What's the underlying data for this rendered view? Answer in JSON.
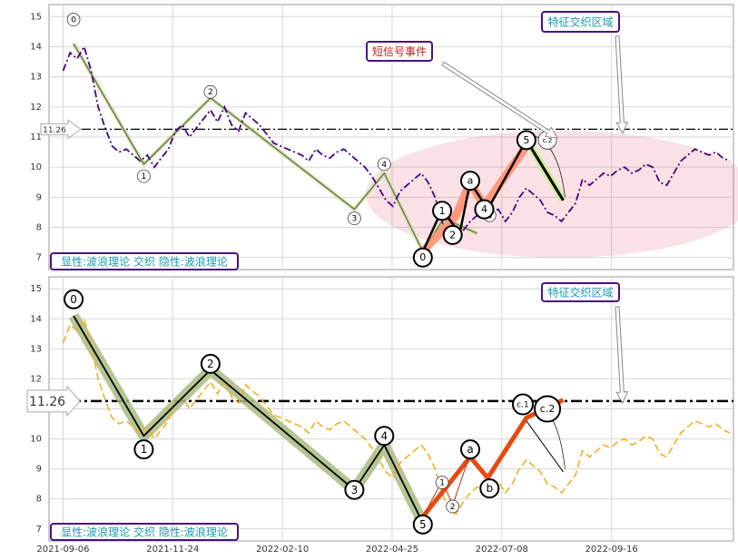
{
  "chart_data": [
    {
      "type": "line",
      "panel": "top",
      "ylim": [
        6.6,
        15.4
      ],
      "yticks": [
        7,
        8,
        9,
        10,
        11,
        12,
        13,
        14,
        15
      ],
      "grid": true,
      "series": [
        {
          "color": "#4b0082",
          "dash": "dashdot",
          "role": "price",
          "x": [
            0,
            4,
            8,
            12,
            16,
            20,
            24,
            28,
            32,
            36,
            40,
            44,
            48,
            52,
            56,
            60,
            64,
            68,
            72,
            76,
            80,
            84,
            88,
            92,
            96,
            100,
            104,
            108,
            112,
            116,
            120,
            124,
            128,
            132,
            136,
            140,
            144,
            148,
            152,
            156,
            160,
            164,
            168,
            172,
            176,
            180,
            184,
            188,
            192,
            196,
            200,
            204,
            208,
            212,
            216,
            220,
            224,
            228,
            232,
            236,
            240,
            244,
            248,
            252,
            256,
            260,
            264,
            268,
            272,
            276,
            280,
            284,
            288,
            292,
            296,
            300,
            304,
            308,
            312,
            316,
            320,
            324,
            328,
            332,
            336,
            340,
            344,
            348,
            352,
            356,
            360,
            364,
            368,
            372,
            376,
            380
          ],
          "y": [
            13.2,
            13.8,
            13.6,
            14.0,
            13.2,
            12.0,
            11.3,
            10.7,
            10.5,
            10.6,
            10.4,
            10.2,
            10.4,
            10.0,
            10.3,
            10.6,
            11.2,
            11.4,
            11.0,
            11.3,
            11.6,
            11.9,
            11.5,
            12.0,
            11.4,
            11.2,
            11.8,
            11.6,
            11.4,
            11.1,
            10.8,
            10.7,
            10.6,
            10.5,
            10.4,
            10.2,
            10.6,
            10.4,
            10.3,
            10.5,
            10.6,
            10.4,
            10.2,
            10.0,
            9.7,
            9.3,
            8.9,
            8.7,
            9.2,
            9.4,
            9.6,
            9.8,
            9.5,
            9.0,
            8.2,
            7.6,
            7.5,
            7.9,
            8.2,
            8.4,
            8.3,
            8.5,
            8.6,
            8.2,
            8.5,
            9.0,
            9.3,
            9.1,
            8.9,
            8.5,
            8.4,
            8.2,
            8.5,
            8.8,
            9.6,
            9.4,
            9.6,
            9.8,
            9.7,
            9.9,
            10.0,
            9.8,
            9.9,
            10.1,
            10.0,
            9.5,
            9.4,
            9.8,
            10.2,
            10.4,
            10.6,
            10.5,
            10.4,
            10.5,
            10.3,
            10.2
          ]
        },
        {
          "color": "#c8e09a",
          "role": "wave-band",
          "x": [
            6,
            46,
            84,
            166,
            183,
            205,
            217,
            236
          ],
          "y": [
            14.1,
            10.1,
            12.3,
            8.6,
            9.8,
            7.2,
            8.3,
            7.8
          ]
        },
        {
          "color": "#ff8c69",
          "role": "signal-band",
          "x": [
            205,
            224,
            232,
            240,
            264
          ],
          "y": [
            7.2,
            8.4,
            9.5,
            8.7,
            10.7
          ]
        },
        {
          "color": "#000000",
          "role": "wave-line",
          "x": [
            205,
            216,
            226,
            232,
            242,
            264,
            285
          ],
          "y": [
            7.2,
            8.6,
            7.8,
            9.5,
            8.6,
            10.9,
            8.9
          ]
        }
      ],
      "wave_labels": [
        "0",
        "1",
        "2",
        "3",
        "4",
        "5",
        "1",
        "2",
        "a",
        "b",
        "4",
        "5",
        "c.2"
      ],
      "level_line": {
        "value": 11.26,
        "label": "11.26"
      },
      "annotations": {
        "short_signal": "短信号事件",
        "feature_zone": "特征交织区域"
      },
      "caption": "显性:波浪理论 交织 隐性:波浪理论"
    },
    {
      "type": "line",
      "panel": "bottom",
      "ylim": [
        6.6,
        15.4
      ],
      "yticks": [
        7,
        8,
        9,
        10,
        11,
        12,
        13,
        14,
        15
      ],
      "grid": true,
      "xtick_labels": [
        "2021-09-06",
        "2021-11-24",
        "2022-02-10",
        "2022-04-25",
        "2022-07-08",
        "2022-09-16"
      ],
      "series": [
        {
          "color": "#f0b020",
          "dash": "dash",
          "role": "price"
        },
        {
          "color": "#7f9a50",
          "role": "wave-band",
          "x": [
            6,
            46,
            84,
            166,
            183,
            205
          ],
          "y": [
            14.1,
            10.1,
            12.3,
            8.3,
            9.8,
            7.2
          ]
        },
        {
          "color": "#e84a10",
          "role": "signal-band",
          "x": [
            205,
            232,
            242,
            264,
            285
          ],
          "y": [
            7.4,
            9.4,
            8.7,
            10.7,
            11.3
          ]
        }
      ],
      "wave_labels": [
        "0",
        "1",
        "2",
        "3",
        "4",
        "5",
        "1",
        "2",
        "a",
        "b",
        "c.1",
        "c.2"
      ],
      "level_line": {
        "value": 11.26,
        "label": "11.26"
      },
      "annotations": {
        "feature_zone": "特征交织区域"
      },
      "caption": "显性:波浪理论 交织 隐性:波浪理论"
    }
  ]
}
